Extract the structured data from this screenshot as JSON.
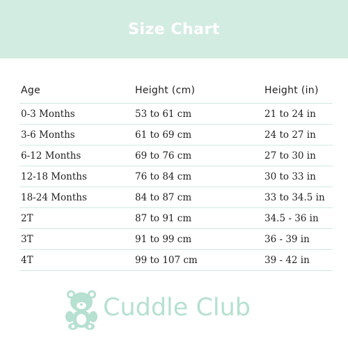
{
  "header": {
    "title": "Size Chart",
    "bg_color": "#d3ece2",
    "text_color": "#ffffff"
  },
  "table": {
    "columns": [
      "Age",
      "Height (cm)",
      "Height (in)"
    ],
    "rows": [
      [
        "0-3 Months",
        "53 to 61 cm",
        "21 to 24 in"
      ],
      [
        "3-6 Months",
        "61 to 69 cm",
        "24 to 27 in"
      ],
      [
        "6-12 Months",
        "69 to 76 cm",
        "27 to 30 in"
      ],
      [
        "12-18 Months",
        "76 to 84 cm",
        "30 to 33 in"
      ],
      [
        "18-24 Months",
        "84 to 87 cm",
        "33 to 34.5 in"
      ],
      [
        "2T",
        "87 to 91 cm",
        "34.5 - 36 in"
      ],
      [
        "3T",
        "91 to 99 cm",
        "36 - 39 in"
      ],
      [
        "4T",
        "99 to 107 cm",
        "39 - 42 in"
      ]
    ],
    "divider_color": "#cfe9df"
  },
  "brand": {
    "name": "Cuddle Club",
    "logo_icon": "teddy-bear-icon",
    "color": "#b6e0d0"
  }
}
